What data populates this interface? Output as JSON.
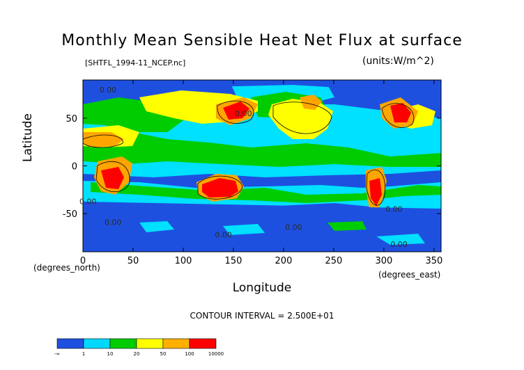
{
  "chart_data": {
    "type": "heatmap",
    "title": "Monthly Mean Sensible Heat Net Flux at surface",
    "subtitle": "[SHTFL_1994-11_NCEP.nc]",
    "units": "(units:W/m^2)",
    "xlabel": "Longitude",
    "ylabel": "Latitude",
    "x_corner": "(degrees_east)",
    "y_corner": "(degrees_north)",
    "xlim": [
      0,
      357
    ],
    "ylim": [
      -90,
      90
    ],
    "x_ticks": [
      "0",
      "50",
      "100",
      "150",
      "200",
      "250",
      "300",
      "350"
    ],
    "y_ticks": [
      "50",
      "0",
      "-50"
    ],
    "contour_interval": "CONTOUR INTERVAL = 2.500E+01",
    "contour_labels": [
      "0.00",
      "0.00",
      "0.00",
      "0.00",
      "0.00",
      "0.00",
      "0.00",
      "0.00"
    ],
    "legend": {
      "labels": [
        "-∞",
        "1",
        "10",
        "20",
        "50",
        "100",
        "10000"
      ],
      "colors": [
        "#1e50e0",
        "#00d8ff",
        "#00cc00",
        "#ffff00",
        "#ffb000",
        "#ff0000"
      ]
    },
    "colors": {
      "ocean": "#1e50e0",
      "cyan": "#00e0ff",
      "green": "#00cc00",
      "yellow": "#ffff00",
      "orange": "#ffa500",
      "red": "#ff0000"
    }
  }
}
